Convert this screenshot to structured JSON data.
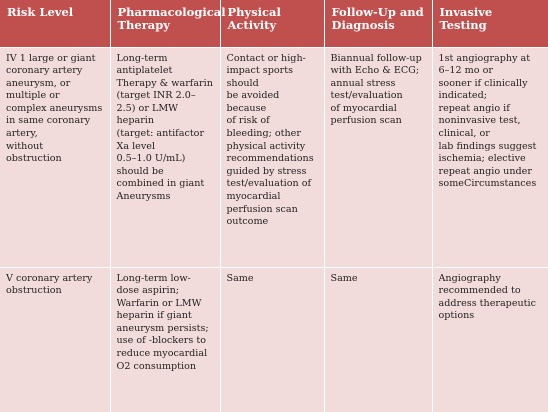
{
  "table": {
    "headers": [
      "Risk Level",
      "Pharmacological Therapy",
      "Physical Activity",
      "Follow-Up and Diagnosis",
      "Invasive Testing"
    ],
    "rows": [
      {
        "risk_level": "IV 1 large or giant\ncoronary artery\naneurysm, or\nmultiple or\ncomplex aneurysms\nin same coronary\nartery,\nwithout\nobstruction",
        "pharmacological": "Long-term\nantiplatelet\nTherapy & warfarin\n(target INR 2.0–\n2.5) or LMW\nheparin\n(target: antifactor\nXa level\n0.5–1.0 U/mL)\nshould be\ncombined in giant\nAneurysms",
        "physical_activity": "Contact or high-\nimpact sports\nshould\nbe avoided because\nof risk of\nbleeding; other\nphysical activity\nrecommendations\nguided by stress\ntest/evaluation of\nmyocardial\nperfusion scan\noutcome",
        "follow_up": "Biannual follow-up\nwith Echo & ECG;\nannual stress\ntest/evaluation\nof myocardial\nperfusion scan",
        "invasive": "1st angiography at\n6–12 mo or\nsooner if clinically\nindicated;\nrepeat angio if\nnoninvasive test,\nclinical, or\nlab findings suggest\nischemia; elective\nrepeat angio under\nsomeCircumstances"
      },
      {
        "risk_level": "V coronary artery\nobstruction",
        "pharmacological": "Long-term low-\ndose aspirin;\nWarfarin or LMW\nheparin if giant\naneurysm persists;\nuse of -blockers to\nreduce myocardial\nO2 consumption",
        "physical_activity": "Same",
        "follow_up": "Same",
        "invasive": "Angiography\nrecommended to\naddress therapeutic\noptions"
      }
    ]
  }
}
